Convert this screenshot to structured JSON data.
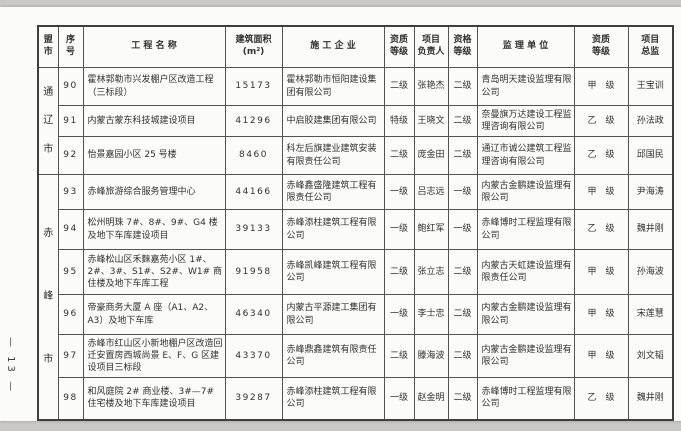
{
  "page": {
    "number_label": "— 13 —"
  },
  "table": {
    "columns": [
      {
        "id": "region",
        "label": "盟\n市"
      },
      {
        "id": "seq",
        "label": "序\n号"
      },
      {
        "id": "name",
        "label": "工 程 名 称"
      },
      {
        "id": "area",
        "label": "建筑面积\n(m²)"
      },
      {
        "id": "contractor",
        "label": "施 工 企 业"
      },
      {
        "id": "contractor_grade",
        "label": "资质\n等级"
      },
      {
        "id": "leader",
        "label": "项目\n负责人"
      },
      {
        "id": "leader_grade",
        "label": "资格\n等级"
      },
      {
        "id": "supervisor",
        "label": "监 理 单 位"
      },
      {
        "id": "supervisor_grade",
        "label": "资质\n等级"
      },
      {
        "id": "director",
        "label": "项目\n总监"
      }
    ],
    "groups": [
      {
        "region": "通辽市",
        "rows": [
          {
            "seq": "90",
            "name": "霍林郭勒市兴发棚户区改造工程（三标段）",
            "area": "15173",
            "contractor": "霍林郭勒市恒阳建设集团有限公司",
            "contractor_grade": "二级",
            "leader": "张艳杰",
            "leader_grade": "二级",
            "supervisor": "青岛明天建设监理有限公司",
            "supervisor_grade": "甲　级",
            "director": "王宝训"
          },
          {
            "seq": "91",
            "name": "内蒙古蒙东科技城建设项目",
            "area": "41296",
            "contractor": "中启胶建集团有限公司",
            "contractor_grade": "特级",
            "leader": "王晓文",
            "leader_grade": "二级",
            "supervisor": "奈曼旗万达建设工程监理咨询有限公司",
            "supervisor_grade": "乙　级",
            "director": "孙法政"
          },
          {
            "seq": "92",
            "name": "怡景嘉园小区 25 号楼",
            "area": "8460",
            "contractor": "科左后旗建业建筑安装有限责任公司",
            "contractor_grade": "二级",
            "leader": "庞金田",
            "leader_grade": "二级",
            "supervisor": "通辽市诚公建筑工程监理咨询有限公司",
            "supervisor_grade": "乙　级",
            "director": "邱国民"
          }
        ]
      },
      {
        "region": "赤峰市",
        "rows": [
          {
            "seq": "93",
            "name": "赤峰旅游综合服务管理中心",
            "area": "44166",
            "contractor": "赤峰鑫盛隆建筑工程有限责任公司",
            "contractor_grade": "一级",
            "leader": "吕志远",
            "leader_grade": "一级",
            "supervisor": "内蒙古金鹏建设监理有限公司",
            "supervisor_grade": "甲　级",
            "director": "尹海涛"
          },
          {
            "seq": "94",
            "name": "松州明珠 7#、8#、9#、G4 楼及地下车库建设项目",
            "area": "39133",
            "contractor": "赤峰添柱建筑工程有限公司",
            "contractor_grade": "一级",
            "leader": "鲍红军",
            "leader_grade": "一级",
            "supervisor": "赤峰博时工程监理有限公司",
            "supervisor_grade": "乙　级",
            "director": "魏井刚"
          },
          {
            "seq": "95",
            "name": "赤峰松山区禾麳嘉苑小区 1#、2#、3#、S1#、S2#、W1# 商住楼及地下车库工程",
            "area": "91958",
            "contractor": "赤峰凯峰建筑工程有限公司",
            "contractor_grade": "二级",
            "leader": "张立志",
            "leader_grade": "二级",
            "supervisor": "内蒙古天虹建设监理有限责任公司",
            "supervisor_grade": "甲　级",
            "director": "孙海波"
          },
          {
            "seq": "96",
            "name": "帝豪商务大厦 A 座（A1、A2、A3）及地下车库",
            "area": "46340",
            "contractor": "内蒙古平源建工集团有限公司",
            "contractor_grade": "一级",
            "leader": "李士忠",
            "leader_grade": "二级",
            "supervisor": "内蒙古金鹏建设监理有限公司",
            "supervisor_grade": "甲　级",
            "director": "宋莲慧"
          },
          {
            "seq": "97",
            "name": "赤峰市红山区小新地棚户区改造回迁安置房西城尚景 E、F、G 区建设项目三标段",
            "area": "43370",
            "contractor": "赤峰鼎鑫建筑有限责任公司",
            "contractor_grade": "二级",
            "leader": "滕海波",
            "leader_grade": "二级",
            "supervisor": "内蒙古金鹏建设监理有限公司",
            "supervisor_grade": "甲　级",
            "director": "刘文韬"
          },
          {
            "seq": "98",
            "name": "和风庭院 2# 商业楼、3#—7# 住宅楼及地下车库建设项目",
            "area": "39287",
            "contractor": "赤峰添柱建筑工程有限公司",
            "contractor_grade": "一级",
            "leader": "赵金明",
            "leader_grade": "二级",
            "supervisor": "赤峰博时工程监理有限公司",
            "supervisor_grade": "乙　级",
            "director": "魏井刚"
          }
        ]
      }
    ]
  }
}
